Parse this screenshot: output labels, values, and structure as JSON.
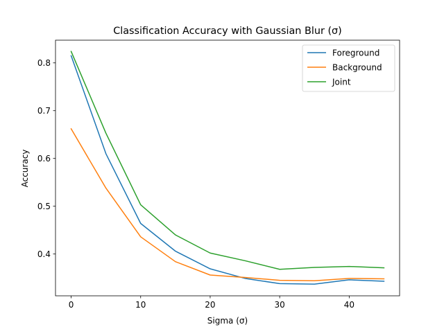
{
  "chart_data": {
    "type": "line",
    "title": "Classification Accuracy with Gaussian Blur (σ)",
    "xlabel": "Sigma (σ)",
    "ylabel": "Accuracy",
    "x": [
      0,
      5,
      10,
      15,
      20,
      25,
      30,
      35,
      40,
      45
    ],
    "xlim": [
      -2.25,
      47.25
    ],
    "ylim": [
      0.3125,
      0.8475
    ],
    "xticks": [
      0,
      10,
      20,
      30,
      40
    ],
    "yticks": [
      0.4,
      0.5,
      0.6,
      0.7,
      0.8
    ],
    "xtick_labels": [
      "0",
      "10",
      "20",
      "30",
      "40"
    ],
    "ytick_labels": [
      "0.4",
      "0.5",
      "0.6",
      "0.7",
      "0.8"
    ],
    "grid": false,
    "legend_position": "top-right",
    "series": [
      {
        "name": "Foreground",
        "color": "#1f77b4",
        "values": [
          0.815,
          0.61,
          0.464,
          0.406,
          0.369,
          0.349,
          0.338,
          0.337,
          0.346,
          0.343
        ]
      },
      {
        "name": "Background",
        "color": "#ff7f0e",
        "values": [
          0.662,
          0.538,
          0.436,
          0.384,
          0.356,
          0.351,
          0.345,
          0.344,
          0.349,
          0.348
        ]
      },
      {
        "name": "Joint",
        "color": "#2ca02c",
        "values": [
          0.824,
          0.653,
          0.503,
          0.44,
          0.402,
          0.386,
          0.368,
          0.372,
          0.374,
          0.371
        ]
      }
    ]
  }
}
